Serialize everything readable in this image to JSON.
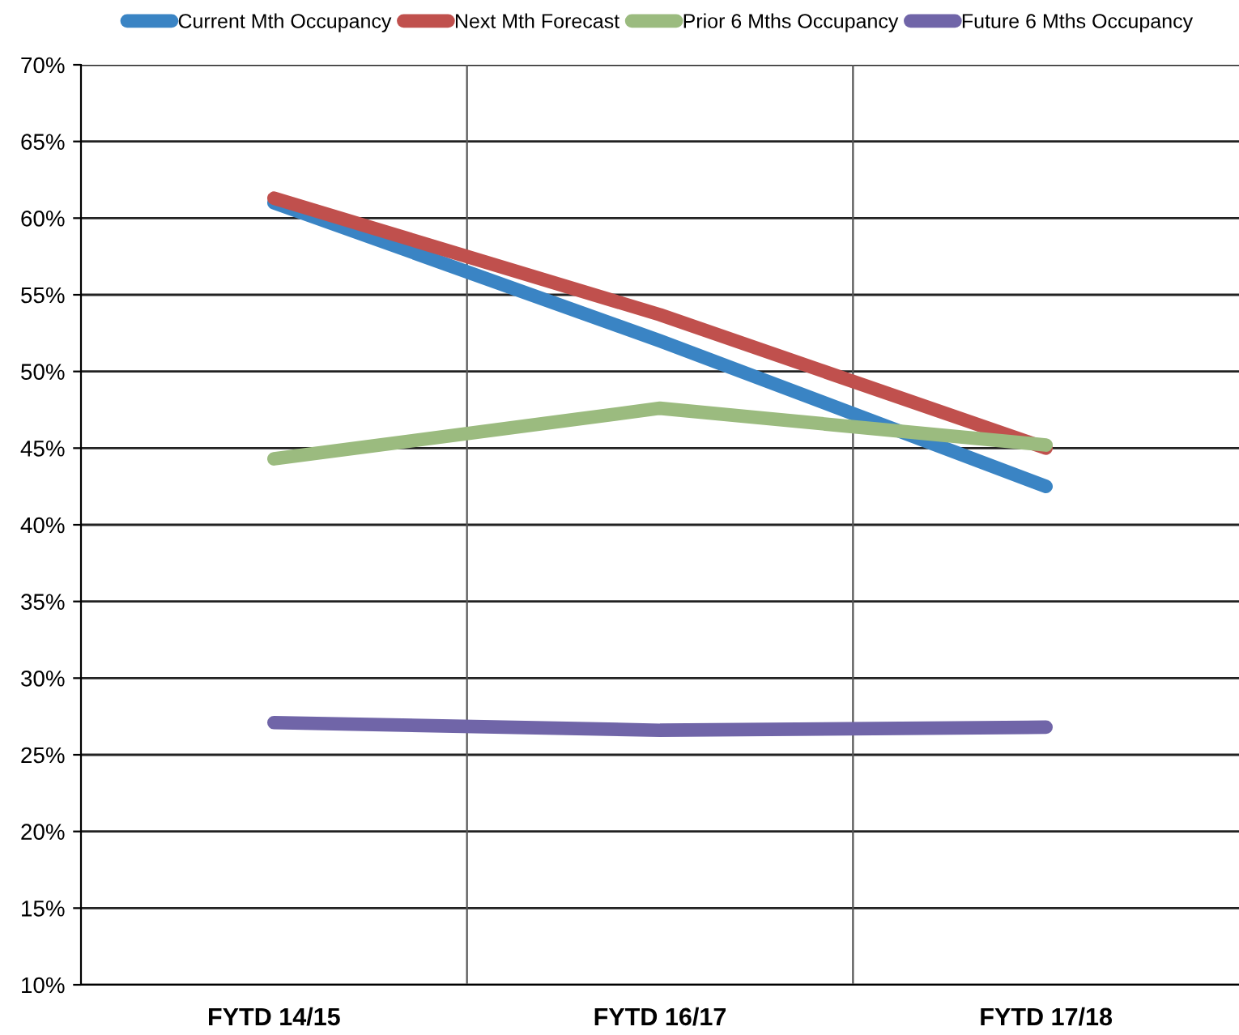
{
  "chart_data": {
    "type": "line",
    "categories": [
      "FYTD 14/15",
      "FYTD 16/17",
      "FYTD 17/18"
    ],
    "series": [
      {
        "name": "Current Mth Occupancy",
        "color": "#3a84c4",
        "values": [
          61.0,
          52.0,
          42.5
        ]
      },
      {
        "name": "Next Mth Forecast",
        "color": "#c0504d",
        "values": [
          61.3,
          53.7,
          45.0
        ]
      },
      {
        "name": "Prior 6 Mths Occupancy",
        "color": "#9bbb7f",
        "values": [
          44.3,
          47.6,
          45.2
        ]
      },
      {
        "name": "Future 6 Mths Occupancy",
        "color": "#7065a8",
        "values": [
          27.1,
          26.6,
          26.8
        ]
      }
    ],
    "ylim": [
      10,
      70
    ],
    "yticks": [
      {
        "value": 10,
        "label": "10%"
      },
      {
        "value": 15,
        "label": "15%"
      },
      {
        "value": 20,
        "label": "20%"
      },
      {
        "value": 25,
        "label": "25%"
      },
      {
        "value": 30,
        "label": "30%"
      },
      {
        "value": 35,
        "label": "35%"
      },
      {
        "value": 40,
        "label": "40%"
      },
      {
        "value": 45,
        "label": "45%"
      },
      {
        "value": 50,
        "label": "50%"
      },
      {
        "value": 55,
        "label": "55%"
      },
      {
        "value": 60,
        "label": "60%"
      },
      {
        "value": 65,
        "label": "65%"
      },
      {
        "value": 70,
        "label": "70%"
      }
    ],
    "grid": true,
    "legend": "top",
    "marker": "none",
    "line_style": "solid"
  }
}
